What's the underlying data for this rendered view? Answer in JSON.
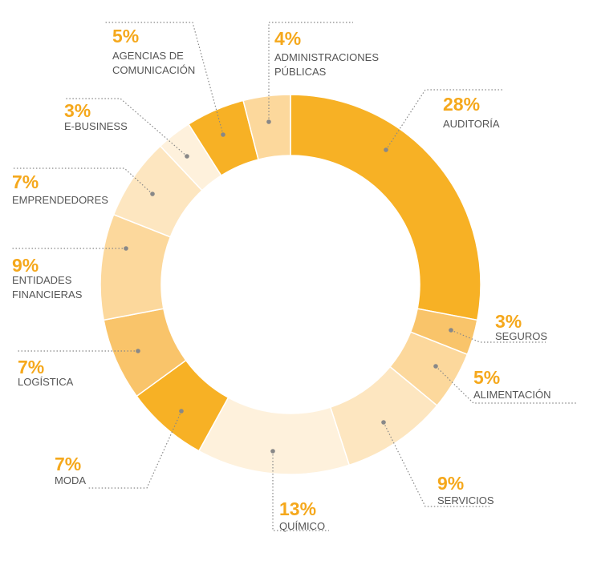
{
  "chart_data": {
    "type": "donut",
    "categories": [
      "AUDITORÍA",
      "SEGUROS",
      "ALIMENTACIÓN",
      "SERVICIOS",
      "QUÍMICO",
      "MODA",
      "LOGÍSTICA",
      "ENTIDADES FINANCIERAS",
      "EMPRENDEDORES",
      "E-BUSINESS",
      "AGENCIAS DE COMUNICACIÓN",
      "ADMINISTRACIONES PÚBLICAS"
    ],
    "values": [
      28,
      3,
      5,
      9,
      13,
      7,
      7,
      9,
      7,
      3,
      5,
      4
    ],
    "value_labels": [
      "28%",
      "3%",
      "5%",
      "9%",
      "13%",
      "7%",
      "7%",
      "9%",
      "7%",
      "3%",
      "5%",
      "4%"
    ],
    "colors": [
      "#f7b125",
      "#f9c46a",
      "#fcd89c",
      "#fde6c0",
      "#fef1dc",
      "#f7b125",
      "#f9c46a",
      "#fcd89c",
      "#fde6c0",
      "#fef1dc",
      "#f7b125",
      "#fcd89c"
    ]
  }
}
